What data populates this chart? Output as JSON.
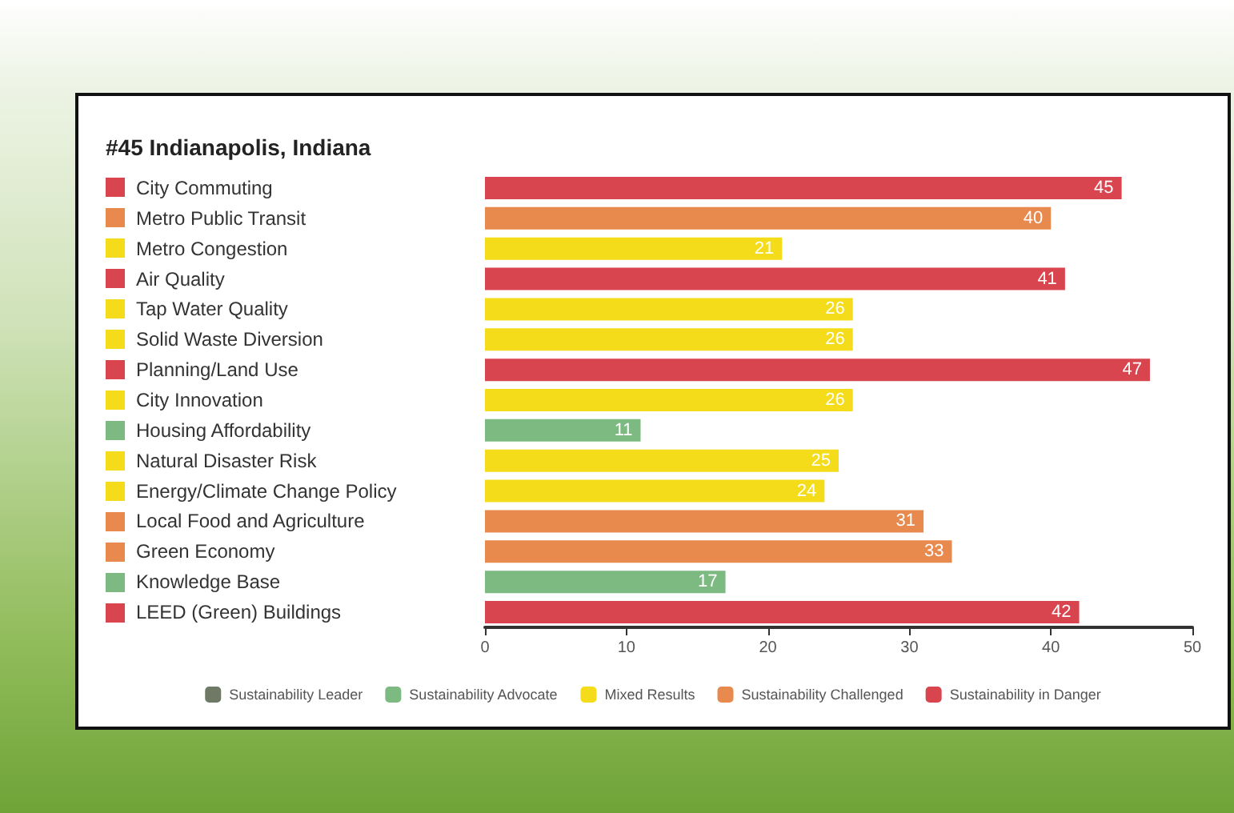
{
  "chart_data": {
    "type": "bar",
    "title": "#45 Indianapolis, Indiana",
    "orientation": "horizontal",
    "stacked": true,
    "categories": [
      "City Commuting",
      "Metro Public Transit",
      "Metro Congestion",
      "Air Quality",
      "Tap Water Quality",
      "Solid Waste Diversion",
      "Planning/Land Use",
      "City Innovation",
      "Housing Affordability",
      "Natural Disaster Risk",
      "Energy/Climate Change Policy",
      "Local Food and Agriculture",
      "Green Economy",
      "Knowledge Base",
      "LEED (Green) Buildings"
    ],
    "series": [
      {
        "name": "Sustainability Leader",
        "color": "#6f7a66",
        "values": [
          null,
          null,
          null,
          null,
          null,
          null,
          null,
          null,
          null,
          null,
          null,
          null,
          null,
          null,
          null
        ]
      },
      {
        "name": "Sustainability Advocate",
        "color": "#7dba82",
        "values": [
          null,
          null,
          null,
          null,
          null,
          null,
          null,
          null,
          11,
          null,
          null,
          null,
          null,
          17,
          null
        ]
      },
      {
        "name": "Mixed Results",
        "color": "#f5dc1a",
        "values": [
          null,
          null,
          21,
          null,
          26,
          26,
          null,
          26,
          null,
          25,
          24,
          null,
          null,
          null,
          null
        ]
      },
      {
        "name": "Sustainability Challenged",
        "color": "#e8894d",
        "values": [
          null,
          40,
          null,
          null,
          null,
          null,
          null,
          null,
          null,
          null,
          null,
          31,
          33,
          null,
          null
        ]
      },
      {
        "name": "Sustainability in Danger",
        "color": "#d9454f",
        "values": [
          45,
          null,
          null,
          41,
          null,
          null,
          47,
          null,
          null,
          null,
          null,
          null,
          null,
          null,
          42
        ]
      }
    ],
    "xlim": [
      0,
      50
    ],
    "xticks": [
      0,
      10,
      20,
      30,
      40,
      50
    ],
    "data_labels": true,
    "legend": "bottom",
    "grid": false
  }
}
